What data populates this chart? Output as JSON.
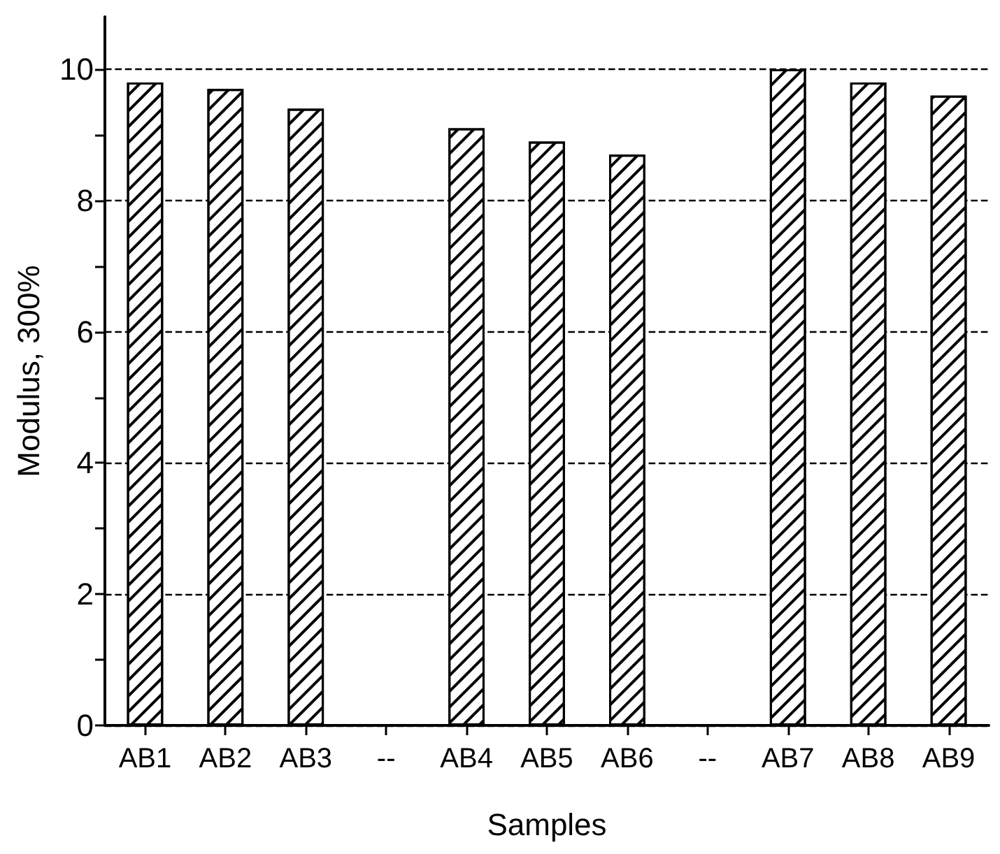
{
  "chart_data": {
    "type": "bar",
    "xlabel": "Samples",
    "ylabel": "Modulus, 300%",
    "categories": [
      "AB1",
      "AB2",
      "AB3",
      "--",
      "AB4",
      "AB5",
      "AB6",
      "--",
      "AB7",
      "AB8",
      "AB9"
    ],
    "values": [
      9.8,
      9.7,
      9.4,
      null,
      9.1,
      8.9,
      8.7,
      null,
      10,
      9.8,
      9.6
    ],
    "color": "#ffffff",
    "ylim": [
      0,
      10.8
    ],
    "yticks": [
      0,
      {
        "value": 1,
        "label": null
      },
      2,
      {
        "value": 3,
        "label": null
      },
      4,
      {
        "value": 5,
        "label": null
      },
      6,
      {
        "value": 7,
        "label": null
      },
      8,
      {
        "value": 9,
        "label": null
      },
      10
    ],
    "grid": "y"
  }
}
